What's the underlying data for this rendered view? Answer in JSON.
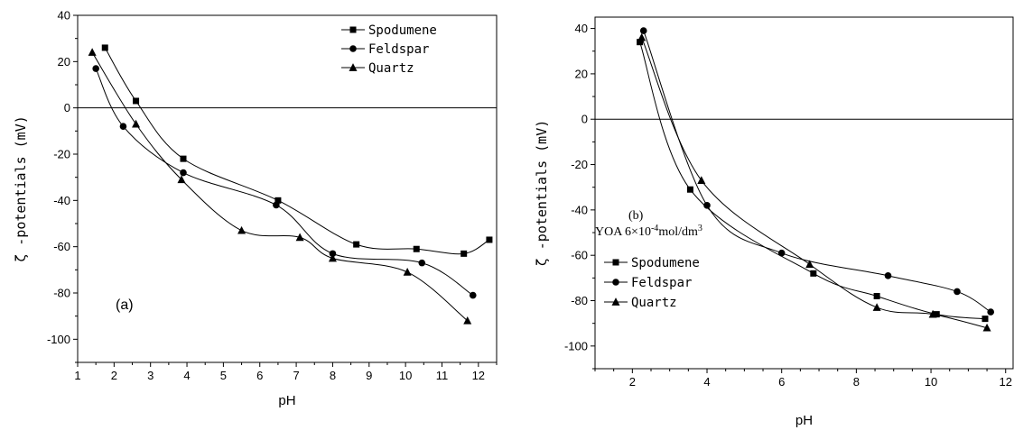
{
  "chart_data": [
    {
      "type": "scatter",
      "panel_label": "(a)",
      "xlabel": "pH",
      "ylabel": "ζ -potentials (mV)",
      "xlim": [
        1,
        12.5
      ],
      "ylim": [
        -110,
        40
      ],
      "x_ticks": [
        1,
        2,
        3,
        4,
        5,
        6,
        7,
        8,
        9,
        10,
        11,
        12
      ],
      "y_ticks": [
        40,
        20,
        0,
        -20,
        -40,
        -60,
        -80,
        -100
      ],
      "reference_line_y": 0,
      "legend_position": "top-right",
      "series": [
        {
          "name": "Spodumene",
          "marker": "square",
          "x": [
            1.75,
            2.6,
            3.9,
            6.5,
            8.65,
            10.3,
            11.6,
            12.3
          ],
          "y": [
            26,
            3,
            -22,
            -40,
            -59,
            -61,
            -63,
            -57
          ]
        },
        {
          "name": "Feldspar",
          "marker": "circle",
          "x": [
            1.5,
            2.25,
            3.9,
            6.45,
            8.0,
            10.45,
            11.85
          ],
          "y": [
            17,
            -8,
            -28,
            -42,
            -63,
            -67,
            -81
          ]
        },
        {
          "name": "Quartz",
          "marker": "triangle",
          "x": [
            1.4,
            2.6,
            3.85,
            5.5,
            7.1,
            8.0,
            10.05,
            11.7
          ],
          "y": [
            24,
            -7,
            -31,
            -53,
            -56,
            -65,
            -71,
            -92
          ]
        }
      ]
    },
    {
      "type": "scatter",
      "panel_label": "(b)",
      "condition_text": "YOA 6×10",
      "condition_sup": "-4",
      "condition_unit": "mol/dm",
      "condition_sup2": "3",
      "xlabel": "pH",
      "ylabel": "ζ -potentials (mV)",
      "xlim": [
        1,
        12.2
      ],
      "ylim": [
        -110,
        45
      ],
      "x_ticks": [
        2,
        4,
        6,
        8,
        10,
        12
      ],
      "y_ticks": [
        40,
        20,
        0,
        -20,
        -40,
        -60,
        -80,
        -100
      ],
      "reference_line_y": 0,
      "legend_position": "bottom-left",
      "series": [
        {
          "name": "Spodumene",
          "marker": "square",
          "x": [
            2.2,
            3.55,
            6.85,
            8.55,
            10.15,
            11.45
          ],
          "y": [
            34,
            -31,
            -68,
            -78,
            -86,
            -88
          ]
        },
        {
          "name": "Feldspar",
          "marker": "circle",
          "x": [
            2.3,
            4.0,
            6.0,
            8.85,
            10.7,
            11.6
          ],
          "y": [
            39,
            -38,
            -59,
            -69,
            -76,
            -85
          ]
        },
        {
          "name": "Quartz",
          "marker": "triangle",
          "x": [
            2.25,
            3.85,
            6.75,
            8.55,
            10.05,
            11.5
          ],
          "y": [
            36,
            -27,
            -64,
            -83,
            -86,
            -92
          ]
        }
      ]
    }
  ]
}
